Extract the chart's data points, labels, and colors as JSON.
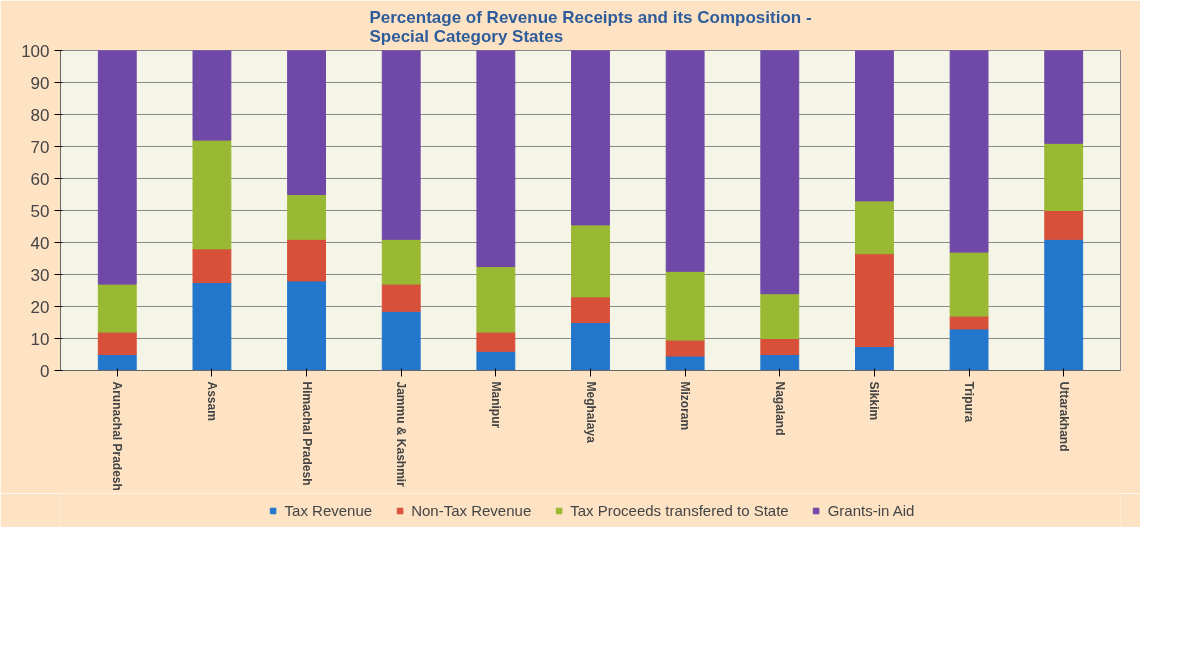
{
  "chart_data": {
    "type": "bar",
    "stacked": true,
    "title": "Percentage of Revenue Receipts and its Composition - Special Category States",
    "categories": [
      "Arunachal Pradesh",
      "Assam",
      "Himachal Pradesh",
      "Jammu & Kashmir",
      "Manipur",
      "Meghalaya",
      "Mizoram",
      "Nagaland",
      "Sikkim",
      "Tripura",
      "Uttarakhand"
    ],
    "series": [
      {
        "name": "Tax Revenue",
        "color": "#2277cc",
        "values": [
          5,
          27.5,
          28,
          18.5,
          6,
          15,
          4.5,
          5,
          7.5,
          13,
          41
        ]
      },
      {
        "name": "Non-Tax Revenue",
        "color": "#d9503a",
        "values": [
          7,
          10.5,
          13,
          8.5,
          6,
          8,
          5,
          5,
          29,
          4,
          9
        ]
      },
      {
        "name": "Tax Proceeds transfered to State",
        "color": "#99b833",
        "values": [
          15,
          34,
          14,
          14,
          20.5,
          22.5,
          21.5,
          14,
          16.5,
          20,
          21
        ]
      },
      {
        "name": "Grants-in Aid",
        "color": "#7048a8",
        "values": [
          73,
          28,
          45,
          59,
          67.5,
          54.5,
          69,
          76,
          47,
          63,
          29
        ]
      }
    ],
    "ylim": [
      0,
      100
    ],
    "yticks": [
      0,
      10,
      20,
      30,
      40,
      50,
      60,
      70,
      80,
      90,
      100
    ],
    "grid": "y",
    "legend": "bottom"
  }
}
